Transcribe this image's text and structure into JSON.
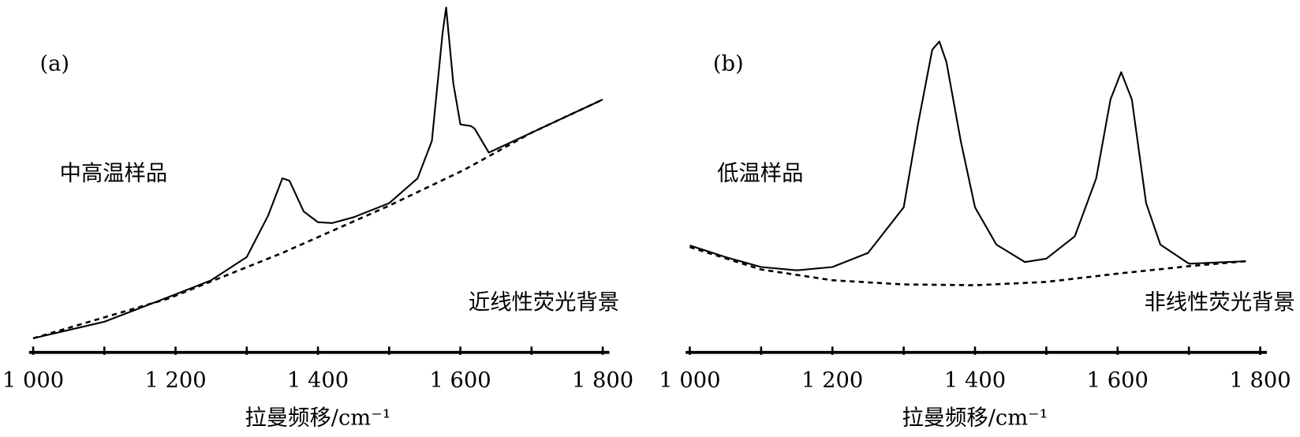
{
  "chart_data": [
    {
      "type": "line",
      "panel_label": "(a)",
      "sample_label": "中高温样品",
      "background_label": "近线性荧光背景",
      "x_label": "拉曼频移/cm⁻¹",
      "xlim": [
        1000,
        1800
      ],
      "ylim": [
        0,
        105
      ],
      "xticks": [
        {
          "value": 1000,
          "label": "1 000"
        },
        {
          "value": 1200,
          "label": "1 200"
        },
        {
          "value": 1400,
          "label": "1 400"
        },
        {
          "value": 1600,
          "label": "1 600"
        },
        {
          "value": 1800,
          "label": "1 800"
        }
      ],
      "xticks_minor": [
        1100,
        1300,
        1500,
        1700
      ],
      "series": [
        {
          "color": "#000000",
          "dashed": false,
          "x": [
            1000,
            1100,
            1200,
            1250,
            1300,
            1330,
            1350,
            1360,
            1380,
            1400,
            1420,
            1450,
            1500,
            1540,
            1560,
            1575,
            1580,
            1590,
            1600,
            1615,
            1620,
            1640,
            1700,
            1800
          ],
          "values": [
            4.25,
            9.25,
            17.5,
            21.75,
            28.75,
            41.25,
            52.5,
            51.75,
            42.5,
            39.25,
            39,
            40.75,
            45,
            52.5,
            63.75,
            96.25,
            104,
            81.25,
            68.75,
            68.25,
            67.5,
            60.25,
            66.25,
            76.25
          ]
        },
        {
          "color": "#000000",
          "dashed": true,
          "x": [
            1000,
            1190,
            1350,
            1500,
            1605,
            1700,
            1800
          ],
          "values": [
            4.25,
            16.25,
            30,
            44.25,
            55,
            66.25,
            76.25
          ]
        }
      ]
    },
    {
      "type": "line",
      "panel_label": "(b)",
      "sample_label": "低温样品",
      "background_label": "非线性荧光背景",
      "x_label": "拉曼频移/cm⁻¹",
      "xlim": [
        1000,
        1800
      ],
      "ylim": [
        0,
        105
      ],
      "xticks": [
        {
          "value": 1000,
          "label": "1 000"
        },
        {
          "value": 1200,
          "label": "1 200"
        },
        {
          "value": 1400,
          "label": "1 400"
        },
        {
          "value": 1600,
          "label": "1 600"
        },
        {
          "value": 1800,
          "label": "1 800"
        }
      ],
      "xticks_minor": [
        1100,
        1300,
        1500,
        1700
      ],
      "series": [
        {
          "color": "#000000",
          "dashed": false,
          "x": [
            1000,
            1050,
            1100,
            1150,
            1200,
            1250,
            1300,
            1320,
            1340,
            1350,
            1360,
            1380,
            1400,
            1430,
            1470,
            1500,
            1540,
            1570,
            1590,
            1605,
            1620,
            1640,
            1660,
            1700,
            1780
          ],
          "values": [
            32.25,
            28.75,
            25.75,
            24.75,
            25.75,
            30,
            43.75,
            68.75,
            91.25,
            93.75,
            87.5,
            63.75,
            43.75,
            32.5,
            27.25,
            28.25,
            35,
            52.5,
            76.25,
            84.5,
            76.25,
            45,
            32.5,
            26.75,
            27.5
          ]
        },
        {
          "color": "#000000",
          "dashed": true,
          "x": [
            1000,
            1100,
            1200,
            1300,
            1400,
            1500,
            1600,
            1700,
            1780
          ],
          "values": [
            31.75,
            25,
            21.75,
            20.5,
            20.25,
            21.25,
            23.75,
            26,
            27.5
          ]
        }
      ]
    }
  ]
}
